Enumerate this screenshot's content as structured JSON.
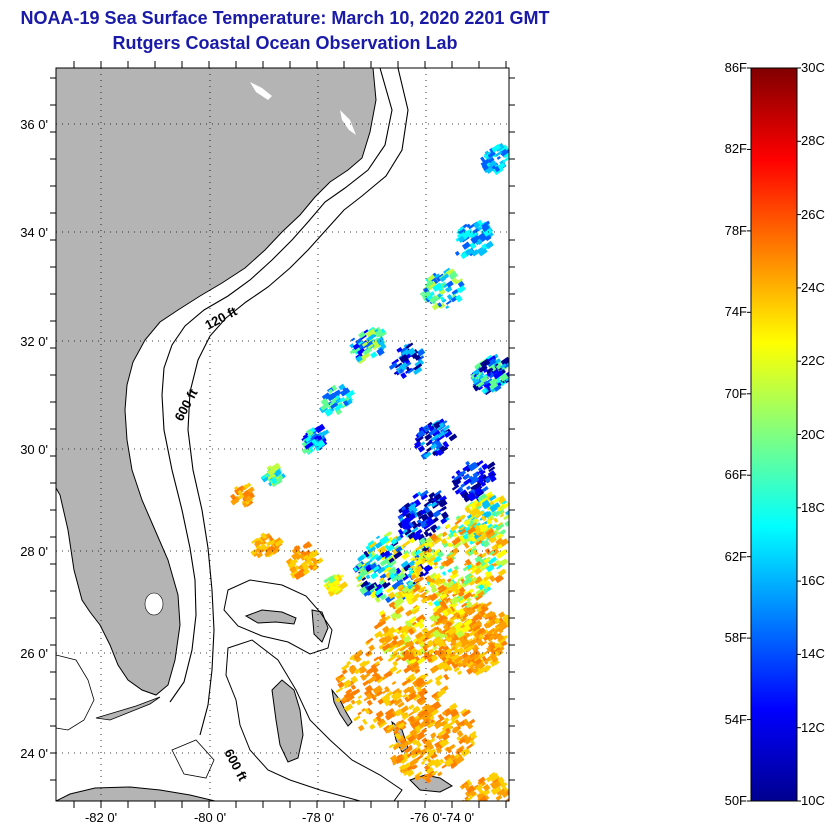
{
  "title": "NOAA-19 Sea Surface Temperature:  March 10, 2020 2201 GMT",
  "subtitle": "Rutgers Coastal Ocean Observation Lab",
  "map": {
    "lon_ticks": [
      "-82 0'",
      "-80 0'",
      "-78 0'",
      "-76 0'",
      "-74 0'"
    ],
    "lat_ticks": [
      "36 0'",
      "34 0'",
      "32 0'",
      "30 0'",
      "28 0'",
      "26 0'",
      "24 0'"
    ],
    "contour_labels": [
      "120 ft",
      "600 ft",
      "600 ft"
    ],
    "land_color": "#b4b4b4"
  },
  "colorbar": {
    "fahrenheit": [
      "86F",
      "82F",
      "78F",
      "74F",
      "70F",
      "66F",
      "62F",
      "58F",
      "54F",
      "50F"
    ],
    "celsius": [
      "30C",
      "28C",
      "26C",
      "24C",
      "22C",
      "20C",
      "18C",
      "16C",
      "14C",
      "12C",
      "10C"
    ],
    "colors": [
      "#00008f",
      "#0000ff",
      "#0080ff",
      "#00ffff",
      "#80ff80",
      "#ffff00",
      "#ff8000",
      "#ff0000",
      "#800000"
    ]
  }
}
